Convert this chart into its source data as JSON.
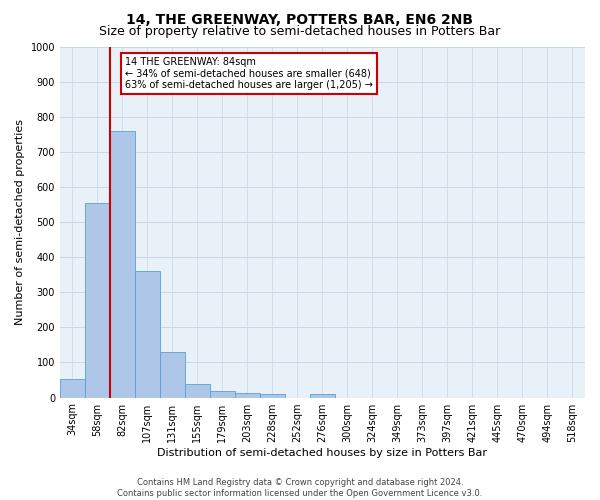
{
  "title": "14, THE GREENWAY, POTTERS BAR, EN6 2NB",
  "subtitle": "Size of property relative to semi-detached houses in Potters Bar",
  "xlabel": "Distribution of semi-detached houses by size in Potters Bar",
  "ylabel": "Number of semi-detached properties",
  "footer_line1": "Contains HM Land Registry data © Crown copyright and database right 2024.",
  "footer_line2": "Contains public sector information licensed under the Open Government Licence v3.0.",
  "bar_labels": [
    "34sqm",
    "58sqm",
    "82sqm",
    "107sqm",
    "131sqm",
    "155sqm",
    "179sqm",
    "203sqm",
    "228sqm",
    "252sqm",
    "276sqm",
    "300sqm",
    "324sqm",
    "349sqm",
    "373sqm",
    "397sqm",
    "421sqm",
    "445sqm",
    "470sqm",
    "494sqm",
    "518sqm"
  ],
  "bar_values": [
    52,
    553,
    760,
    360,
    130,
    40,
    18,
    13,
    10,
    0,
    10,
    0,
    0,
    0,
    0,
    0,
    0,
    0,
    0,
    0,
    0
  ],
  "bar_color": "#aec6e8",
  "bar_edge_color": "#5a9fd4",
  "vline_x_index": 2,
  "vline_color": "#cc0000",
  "annotation_text_line1": "14 THE GREENWAY: 84sqm",
  "annotation_text_line2": "← 34% of semi-detached houses are smaller (648)",
  "annotation_text_line3": "63% of semi-detached houses are larger (1,205) →",
  "annotation_box_color": "#ffffff",
  "annotation_box_edge": "#cc0000",
  "ylim": [
    0,
    1000
  ],
  "yticks": [
    0,
    100,
    200,
    300,
    400,
    500,
    600,
    700,
    800,
    900,
    1000
  ],
  "background_color": "#ffffff",
  "plot_bg_color": "#e8f0f8",
  "grid_color": "#c8d8e8",
  "title_fontsize": 10,
  "subtitle_fontsize": 9,
  "ylabel_fontsize": 8,
  "xlabel_fontsize": 8,
  "tick_fontsize": 7,
  "annotation_fontsize": 7,
  "footer_fontsize": 6
}
